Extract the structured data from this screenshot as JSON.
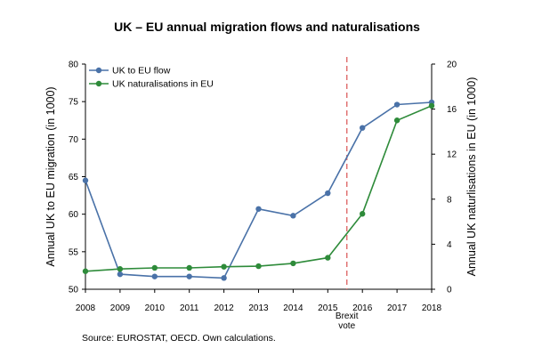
{
  "title": "UK – EU annual migration flows and naturalisations",
  "source": "Source: EUROSTAT, OECD. Own calculations.",
  "chart_data": {
    "type": "line",
    "title": "UK – EU annual migration flows and naturalisations",
    "x": [
      2008,
      2009,
      2010,
      2011,
      2012,
      2013,
      2014,
      2015,
      2016,
      2017,
      2018
    ],
    "x_tick_labels": [
      "2008",
      "2009",
      "2010",
      "2011",
      "2012",
      "2013",
      "2014",
      "2015",
      "2016",
      "2017",
      "2018"
    ],
    "ylabel_left": "Annual UK to EU migration (in 1000)",
    "ylabel_right": "Annual UK naturlisations in EU (in 1000)",
    "ylim_left": [
      50,
      80
    ],
    "yticks_left": [
      50,
      55,
      60,
      65,
      70,
      75,
      80
    ],
    "ylim_right": [
      0,
      20
    ],
    "yticks_right": [
      0,
      4,
      8,
      12,
      16,
      20
    ],
    "grid": false,
    "legend_position": "top-left",
    "series": [
      {
        "name": "UK to EU flow",
        "axis": "left",
        "color": "#4a72a8",
        "values": [
          64.5,
          52.0,
          51.7,
          51.7,
          51.5,
          60.7,
          59.8,
          62.8,
          71.5,
          74.6,
          74.9
        ]
      },
      {
        "name": "UK naturalisations in EU",
        "axis": "right",
        "color": "#2e8b3a",
        "values": [
          1.6,
          1.8,
          1.9,
          1.9,
          2.0,
          2.05,
          2.3,
          2.8,
          6.7,
          15.0,
          16.3
        ]
      }
    ],
    "annotations": [
      {
        "text_lines": [
          "Brexit",
          "vote"
        ],
        "x": 2015.55,
        "color": "#e07070",
        "style": "dashed vertical line"
      }
    ]
  }
}
